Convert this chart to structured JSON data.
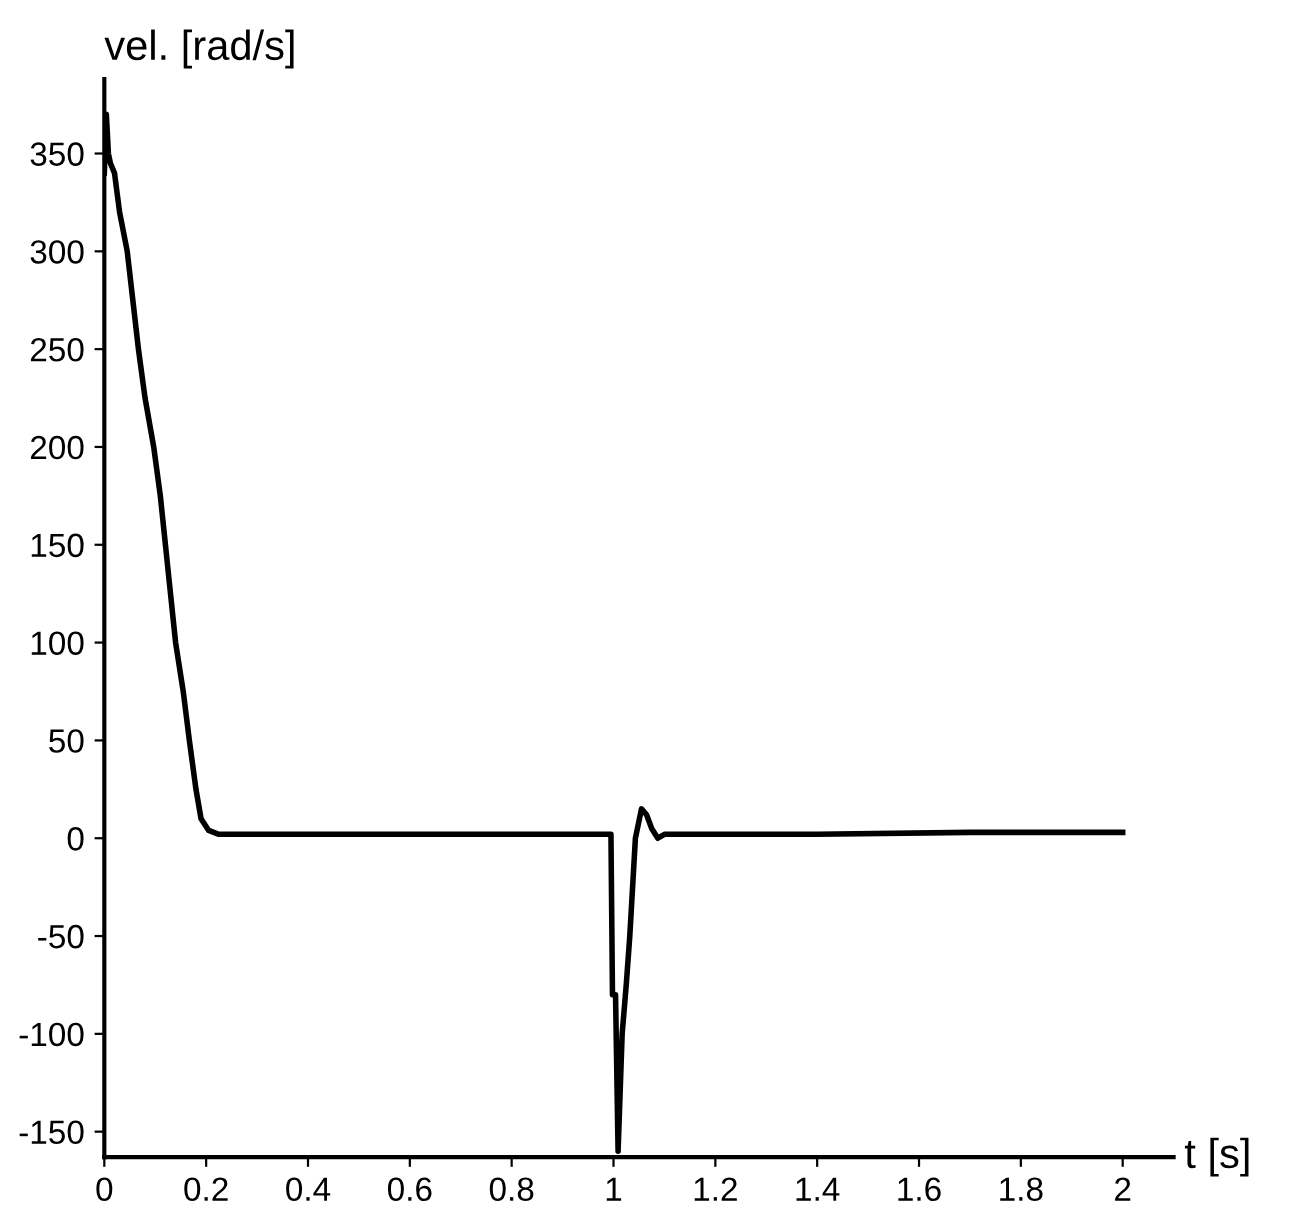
{
  "chart_data": {
    "type": "line",
    "ylabel": "vel. [rad/s]",
    "xlabel": "t [s]",
    "series": [
      {
        "color": "#000000",
        "x": [
          0,
          0.004,
          0.008,
          0.012,
          0.02,
          0.03,
          0.045,
          0.067,
          0.08,
          0.097,
          0.11,
          0.12,
          0.13,
          0.14,
          0.155,
          0.167,
          0.18,
          0.19,
          0.205,
          0.225,
          0.4,
          0.6,
          0.8,
          0.995,
          0.998,
          1.004,
          1.009,
          1.013,
          1.017,
          1.025,
          1.032,
          1.043,
          1.055,
          1.065,
          1.075,
          1.087,
          1.1,
          1.4,
          1.7,
          2
        ],
        "values": [
          340,
          370,
          350,
          345,
          340,
          320,
          300,
          250,
          225,
          200,
          175,
          150,
          125,
          100,
          75,
          50,
          25,
          10,
          4,
          2,
          2,
          2,
          2,
          2,
          -80,
          -80,
          -160,
          -130,
          -100,
          -75,
          -50,
          0,
          15,
          12,
          5,
          0,
          2,
          2,
          3,
          3
        ]
      }
    ],
    "xlim": [
      0,
      2.1
    ],
    "ylim": [
      -163,
      388
    ],
    "xticks": [
      0,
      0.2,
      0.4,
      0.6,
      0.8,
      1,
      1.2,
      1.4,
      1.6,
      1.8,
      2
    ],
    "yticks": [
      -150,
      -100,
      -50,
      0,
      50,
      100,
      150,
      200,
      250,
      300,
      350
    ],
    "grid": false,
    "marker": "none",
    "line_style": "solid"
  }
}
